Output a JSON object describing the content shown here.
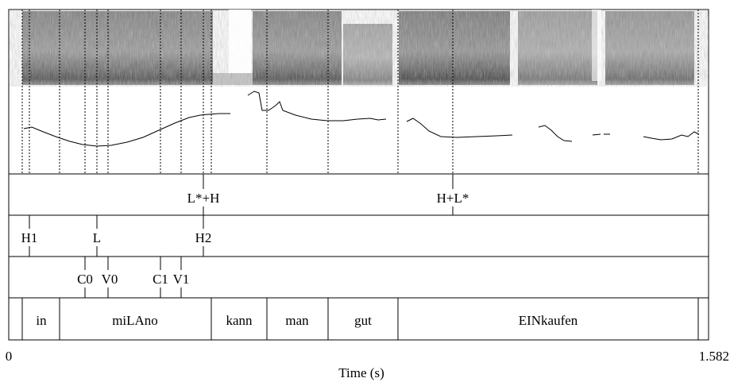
{
  "axis": {
    "xmin_label": "0",
    "xmax_label": "1.582",
    "xlabel": "Time (s)"
  },
  "tiers": {
    "tonal": {
      "labels": [
        "L*+H",
        "H+L*"
      ]
    },
    "targets": {
      "labels": [
        "H1",
        "L",
        "H2"
      ]
    },
    "segments": {
      "labels": [
        "C0",
        "V0",
        "C1",
        "V1"
      ]
    },
    "words": {
      "labels": [
        "in",
        "miLAno",
        "kann",
        "man",
        "gut",
        "EINkaufen"
      ]
    }
  },
  "icons": {
    "spectrogram": "spectrogram-image",
    "pitch": "pitch-contour-line"
  },
  "colors": {
    "ink": "#000000",
    "background": "#ffffff"
  }
}
